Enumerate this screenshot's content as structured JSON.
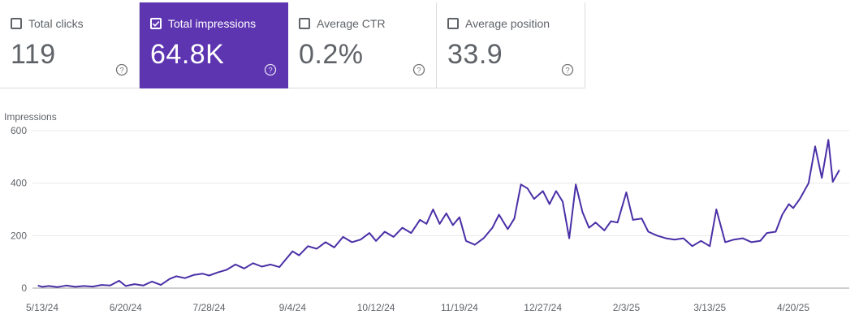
{
  "cards": [
    {
      "label": "Total clicks",
      "value": "119",
      "selected": false
    },
    {
      "label": "Total impressions",
      "value": "64.8K",
      "selected": true
    },
    {
      "label": "Average CTR",
      "value": "0.2%",
      "selected": false
    },
    {
      "label": "Average position",
      "value": "33.9",
      "selected": false
    }
  ],
  "colors": {
    "accent": "#5e35b1",
    "line": "#4a2fa6",
    "grid": "#e8e8e8",
    "axis": "#9e9e9e",
    "text": "#5f6368"
  },
  "chart_data": {
    "type": "line",
    "ylabel": "Impressions",
    "ylim": [
      0,
      600
    ],
    "yticks": [
      0,
      200,
      400,
      600
    ],
    "xlim": [
      "2024-05-11",
      "2025-05-13"
    ],
    "xticks": [
      {
        "date": "2024-05-13",
        "label": "5/13/24"
      },
      {
        "date": "2024-06-20",
        "label": "6/20/24"
      },
      {
        "date": "2024-07-28",
        "label": "7/28/24"
      },
      {
        "date": "2024-09-04",
        "label": "9/4/24"
      },
      {
        "date": "2024-10-12",
        "label": "10/12/24"
      },
      {
        "date": "2024-11-19",
        "label": "11/19/24"
      },
      {
        "date": "2024-12-27",
        "label": "12/27/24"
      },
      {
        "date": "2025-02-03",
        "label": "2/3/25"
      },
      {
        "date": "2025-03-13",
        "label": "3/13/25"
      },
      {
        "date": "2025-04-20",
        "label": "4/20/25"
      }
    ],
    "grid": true,
    "series": [
      {
        "points": [
          [
            "2024-05-11",
            10
          ],
          [
            "2024-05-13",
            5
          ],
          [
            "2024-05-16",
            8
          ],
          [
            "2024-05-20",
            4
          ],
          [
            "2024-05-24",
            10
          ],
          [
            "2024-05-28",
            5
          ],
          [
            "2024-06-01",
            8
          ],
          [
            "2024-06-05",
            6
          ],
          [
            "2024-06-09",
            12
          ],
          [
            "2024-06-13",
            10
          ],
          [
            "2024-06-17",
            28
          ],
          [
            "2024-06-20",
            8
          ],
          [
            "2024-06-24",
            15
          ],
          [
            "2024-06-28",
            10
          ],
          [
            "2024-07-02",
            25
          ],
          [
            "2024-07-06",
            12
          ],
          [
            "2024-07-10",
            35
          ],
          [
            "2024-07-13",
            45
          ],
          [
            "2024-07-17",
            38
          ],
          [
            "2024-07-21",
            50
          ],
          [
            "2024-07-25",
            55
          ],
          [
            "2024-07-28",
            48
          ],
          [
            "2024-08-01",
            60
          ],
          [
            "2024-08-05",
            70
          ],
          [
            "2024-08-09",
            90
          ],
          [
            "2024-08-13",
            75
          ],
          [
            "2024-08-17",
            95
          ],
          [
            "2024-08-21",
            82
          ],
          [
            "2024-08-25",
            90
          ],
          [
            "2024-08-29",
            80
          ],
          [
            "2024-09-01",
            110
          ],
          [
            "2024-09-04",
            140
          ],
          [
            "2024-09-07",
            125
          ],
          [
            "2024-09-11",
            160
          ],
          [
            "2024-09-15",
            150
          ],
          [
            "2024-09-19",
            175
          ],
          [
            "2024-09-23",
            155
          ],
          [
            "2024-09-27",
            195
          ],
          [
            "2024-10-01",
            175
          ],
          [
            "2024-10-05",
            185
          ],
          [
            "2024-10-09",
            210
          ],
          [
            "2024-10-12",
            180
          ],
          [
            "2024-10-16",
            215
          ],
          [
            "2024-10-20",
            195
          ],
          [
            "2024-10-24",
            230
          ],
          [
            "2024-10-28",
            210
          ],
          [
            "2024-11-01",
            260
          ],
          [
            "2024-11-04",
            245
          ],
          [
            "2024-11-07",
            300
          ],
          [
            "2024-11-10",
            245
          ],
          [
            "2024-11-13",
            285
          ],
          [
            "2024-11-16",
            240
          ],
          [
            "2024-11-19",
            270
          ],
          [
            "2024-11-22",
            180
          ],
          [
            "2024-11-26",
            165
          ],
          [
            "2024-11-30",
            190
          ],
          [
            "2024-12-04",
            230
          ],
          [
            "2024-12-07",
            280
          ],
          [
            "2024-12-11",
            225
          ],
          [
            "2024-12-14",
            265
          ],
          [
            "2024-12-17",
            395
          ],
          [
            "2024-12-20",
            380
          ],
          [
            "2024-12-23",
            340
          ],
          [
            "2024-12-27",
            370
          ],
          [
            "2024-12-30",
            320
          ],
          [
            "2025-01-02",
            370
          ],
          [
            "2025-01-05",
            330
          ],
          [
            "2025-01-08",
            190
          ],
          [
            "2025-01-11",
            395
          ],
          [
            "2025-01-14",
            290
          ],
          [
            "2025-01-17",
            230
          ],
          [
            "2025-01-20",
            250
          ],
          [
            "2025-01-24",
            220
          ],
          [
            "2025-01-27",
            255
          ],
          [
            "2025-01-30",
            250
          ],
          [
            "2025-02-03",
            365
          ],
          [
            "2025-02-06",
            260
          ],
          [
            "2025-02-10",
            265
          ],
          [
            "2025-02-13",
            215
          ],
          [
            "2025-02-17",
            200
          ],
          [
            "2025-02-21",
            190
          ],
          [
            "2025-02-25",
            185
          ],
          [
            "2025-03-01",
            190
          ],
          [
            "2025-03-05",
            160
          ],
          [
            "2025-03-09",
            180
          ],
          [
            "2025-03-13",
            160
          ],
          [
            "2025-03-16",
            300
          ],
          [
            "2025-03-20",
            175
          ],
          [
            "2025-03-24",
            185
          ],
          [
            "2025-03-28",
            190
          ],
          [
            "2025-04-01",
            175
          ],
          [
            "2025-04-05",
            180
          ],
          [
            "2025-04-08",
            210
          ],
          [
            "2025-04-12",
            215
          ],
          [
            "2025-04-15",
            280
          ],
          [
            "2025-04-18",
            320
          ],
          [
            "2025-04-20",
            305
          ],
          [
            "2025-04-23",
            340
          ],
          [
            "2025-04-27",
            400
          ],
          [
            "2025-04-30",
            540
          ],
          [
            "2025-05-03",
            420
          ],
          [
            "2025-05-06",
            565
          ],
          [
            "2025-05-08",
            405
          ],
          [
            "2025-05-11",
            450
          ]
        ]
      }
    ]
  }
}
